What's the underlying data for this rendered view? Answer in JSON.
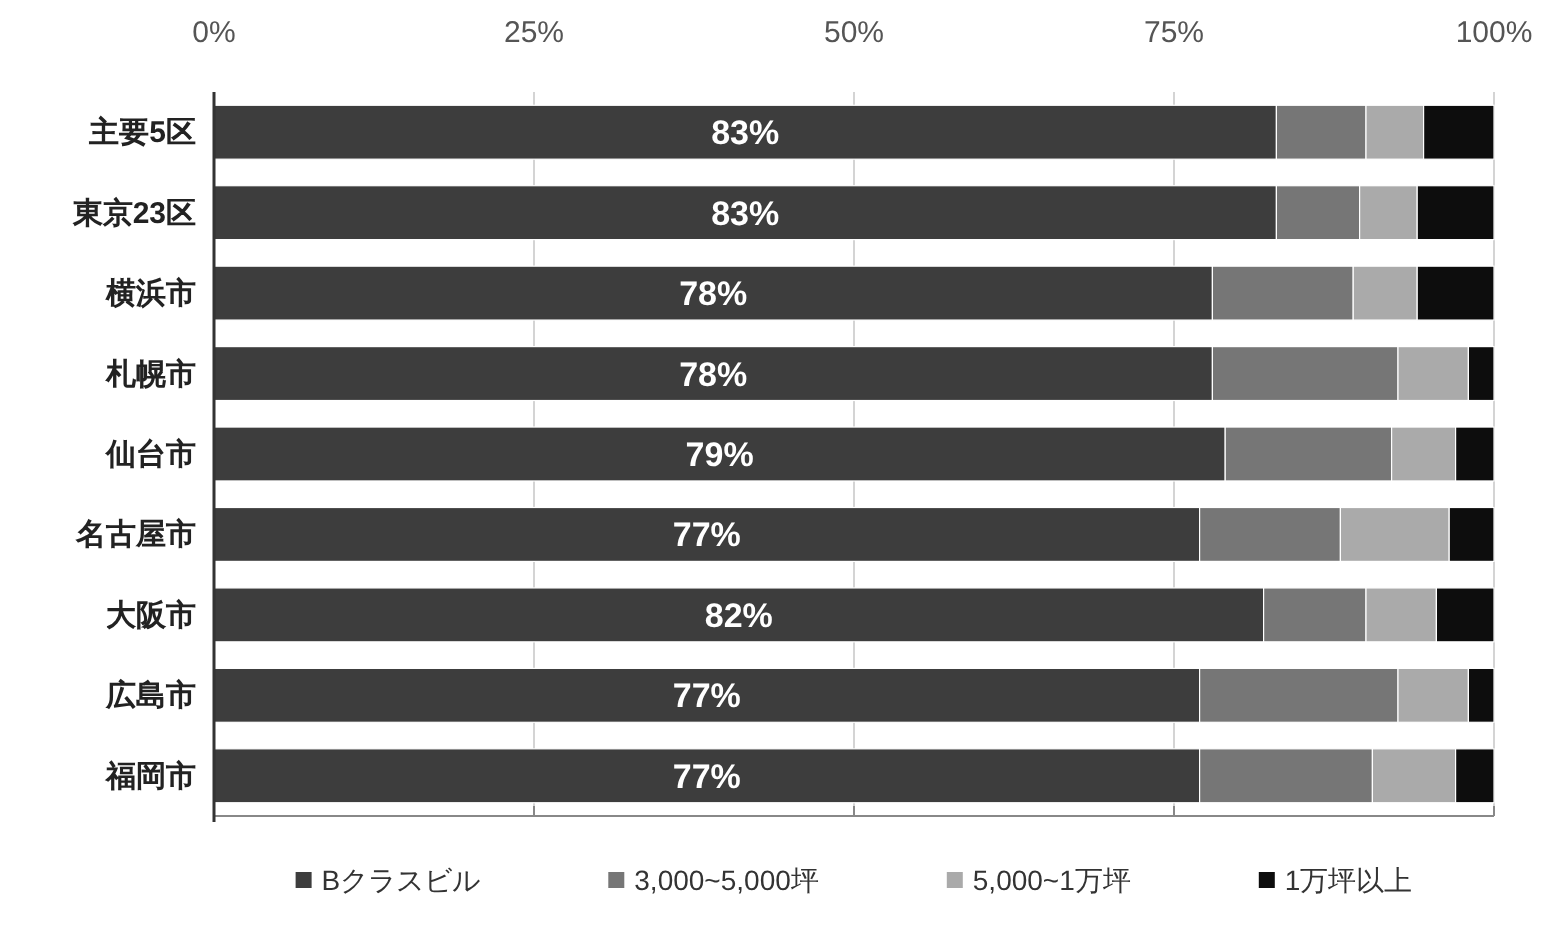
{
  "chart_data": {
    "type": "bar",
    "orientation": "horizontal",
    "stacked": true,
    "categories": [
      "主要5区",
      "東京23区",
      "横浜市",
      "札幌市",
      "仙台市",
      "名古屋市",
      "大阪市",
      "広島市",
      "福岡市"
    ],
    "series": [
      {
        "name": "Bクラスビル",
        "color": "#3d3d3d",
        "values": [
          83,
          83,
          78,
          78,
          79,
          77,
          82,
          77,
          77
        ],
        "value_labels": [
          "83%",
          "83%",
          "78%",
          "78%",
          "79%",
          "77%",
          "82%",
          "77%",
          "77%"
        ]
      },
      {
        "name": "3,000~5,000坪",
        "color": "#767676",
        "values": [
          7,
          6.5,
          11,
          14.5,
          13,
          11,
          8,
          15.5,
          13.5
        ]
      },
      {
        "name": "5,000~1万坪",
        "color": "#aaaaaa",
        "values": [
          4.5,
          4.5,
          5,
          5.5,
          5,
          8.5,
          5.5,
          5.5,
          6.5
        ]
      },
      {
        "name": "1万坪以上",
        "color": "#0d0d0d",
        "values": [
          5.5,
          6,
          6,
          2,
          3,
          3.5,
          4.5,
          2,
          3
        ]
      }
    ],
    "xlim": [
      0,
      100
    ],
    "xticks": [
      {
        "value": 0,
        "label": "0%"
      },
      {
        "value": 25,
        "label": "25%"
      },
      {
        "value": 50,
        "label": "50%"
      },
      {
        "value": 75,
        "label": "75%"
      },
      {
        "value": 100,
        "label": "100%"
      }
    ],
    "grid": "x",
    "legend": "bottom"
  }
}
